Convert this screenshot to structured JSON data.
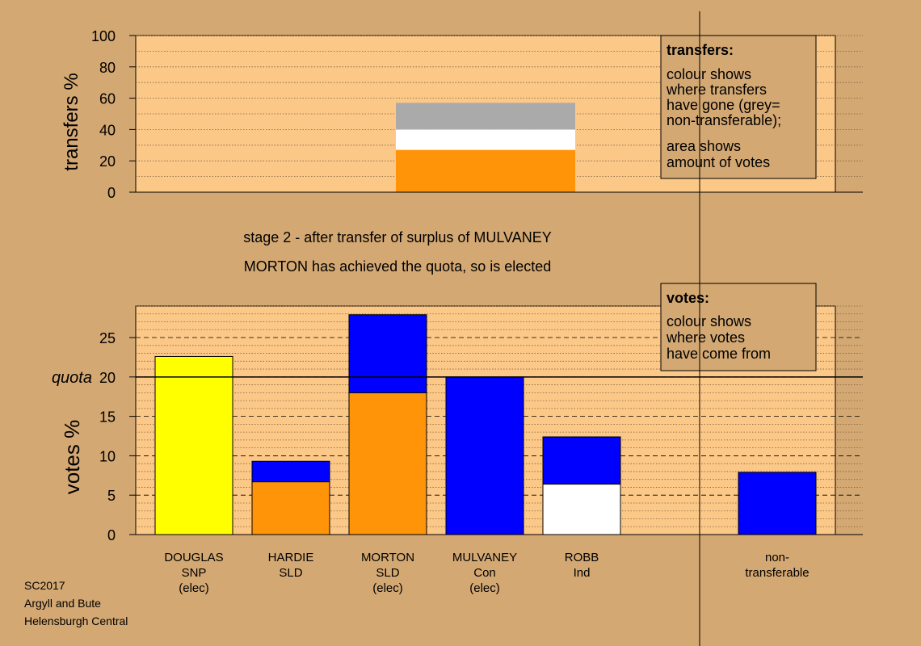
{
  "colors": {
    "background": "#d4a872",
    "plot_background": "#fcc888",
    "SNP": "#ffff00",
    "SLD": "#ff9408",
    "Con": "#0000ff",
    "Ind": "#ffffff",
    "non_transferable": "#aaaaaa"
  },
  "footer": {
    "line1": "SC2017",
    "line2": "Argyll and Bute",
    "line3": "Helensburgh Central"
  },
  "stage": {
    "line1": "stage 2 - after transfer of surplus of MULVANEY",
    "line2": "MORTON has achieved the quota, so is elected"
  },
  "transfers_note": {
    "title": "transfers:",
    "lines": [
      "colour shows",
      "where transfers",
      "have gone (grey=",
      "non-transferable);"
    ],
    "lines2": [
      "area shows",
      "amount of votes"
    ]
  },
  "votes_note": {
    "title": "votes:",
    "lines": [
      "colour shows",
      "where votes",
      "have come from"
    ]
  },
  "chart_data": [
    {
      "type": "bar",
      "ylabel": "transfers %",
      "ylim": [
        0,
        100
      ],
      "yticks": [
        0,
        20,
        40,
        60,
        80,
        100
      ],
      "grid": true,
      "stacks": [
        {
          "color_key": "SLD",
          "value": 27
        },
        {
          "color_key": "Ind",
          "value": 13
        },
        {
          "color_key": "non_transferable",
          "value": 17
        }
      ]
    },
    {
      "type": "bar",
      "ylabel": "votes %",
      "ylim": [
        0,
        29
      ],
      "yticks": [
        0,
        5,
        10,
        15,
        20,
        25
      ],
      "quota": 20,
      "quota_label": "quota",
      "grid": true,
      "candidates": [
        {
          "name": "DOUGLAS",
          "party": "SNP",
          "note": "(elec)",
          "segments": [
            {
              "color_key": "SNP",
              "value": 22.6
            }
          ]
        },
        {
          "name": "HARDIE",
          "party": "SLD",
          "note": "",
          "segments": [
            {
              "color_key": "SLD",
              "value": 6.7
            },
            {
              "color_key": "Con",
              "value": 2.6
            }
          ]
        },
        {
          "name": "MORTON",
          "party": "SLD",
          "note": "(elec)",
          "segments": [
            {
              "color_key": "SLD",
              "value": 18
            },
            {
              "color_key": "Con",
              "value": 9.9
            }
          ]
        },
        {
          "name": "MULVANEY",
          "party": "Con",
          "note": "(elec)",
          "segments": [
            {
              "color_key": "Con",
              "value": 20
            }
          ]
        },
        {
          "name": "ROBB",
          "party": "Ind",
          "note": "",
          "segments": [
            {
              "color_key": "Ind",
              "value": 6.4
            },
            {
              "color_key": "Con",
              "value": 6
            }
          ]
        }
      ],
      "nontransferable": {
        "name": "non-",
        "party": "transferable",
        "segments": [
          {
            "color_key": "Con",
            "value": 7.9
          }
        ]
      }
    }
  ]
}
